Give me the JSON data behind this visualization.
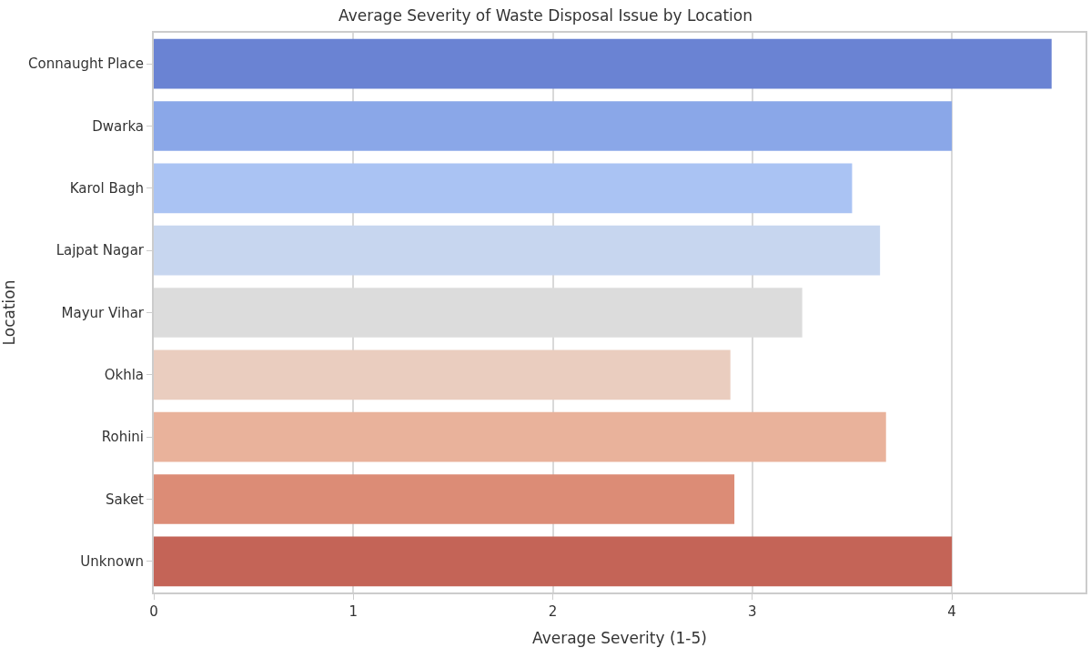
{
  "chart_data": {
    "type": "bar",
    "orientation": "horizontal",
    "title": "Average Severity of Waste Disposal Issue by Location",
    "xlabel": "Average Severity (1-5)",
    "ylabel": "Location",
    "categories": [
      "Connaught Place",
      "Dwarka",
      "Karol Bagh",
      "Lajpat Nagar",
      "Mayur Vihar",
      "Okhla",
      "Rohini",
      "Saket",
      "Unknown"
    ],
    "values": [
      4.5,
      4.0,
      3.5,
      3.64,
      3.25,
      2.89,
      3.67,
      2.91,
      4.0
    ],
    "colors": [
      "#6a83d3",
      "#8aa7e8",
      "#aac3f3",
      "#c7d6ef",
      "#dcdcdc",
      "#eacdbf",
      "#e9b29b",
      "#dc8c76",
      "#c46457"
    ],
    "xlim": [
      0,
      4.67
    ],
    "xticks": [
      0,
      1,
      2,
      3,
      4
    ],
    "grid": "x"
  }
}
